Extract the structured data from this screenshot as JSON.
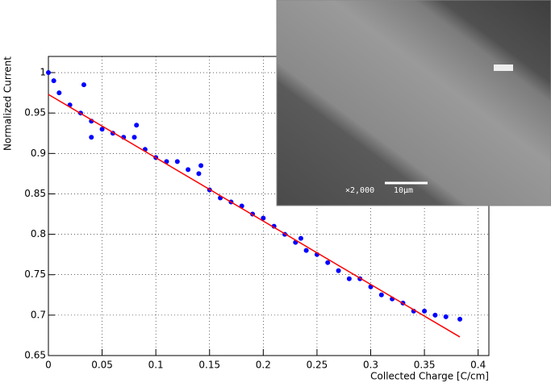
{
  "chart_data": {
    "type": "scatter",
    "x_label": "Collected Charge [C/cm]",
    "y_label": "Normalized Current",
    "xlim": [
      0,
      0.41
    ],
    "ylim": [
      0.65,
      1.02
    ],
    "xticks": [
      0,
      0.05,
      0.1,
      0.15,
      0.2,
      0.25,
      0.3,
      0.35,
      0.4
    ],
    "yticks": [
      0.65,
      0.7,
      0.75,
      0.8,
      0.85,
      0.9,
      0.95,
      1
    ],
    "grid": true,
    "annotations": [
      "×2,000",
      "10μm"
    ],
    "series": [
      {
        "type": "scatter",
        "color": "#0000ff",
        "x": [
          0,
          0.005,
          0.01,
          0.02,
          0.03,
          0.033,
          0.04,
          0.04,
          0.05,
          0.06,
          0.07,
          0.08,
          0.082,
          0.09,
          0.1,
          0.11,
          0.12,
          0.13,
          0.14,
          0.142,
          0.15,
          0.16,
          0.17,
          0.18,
          0.19,
          0.2,
          0.21,
          0.22,
          0.23,
          0.235,
          0.24,
          0.25,
          0.26,
          0.27,
          0.28,
          0.29,
          0.3,
          0.31,
          0.32,
          0.33,
          0.34,
          0.35,
          0.36,
          0.37,
          0.383
        ],
        "values": [
          1.0,
          0.99,
          0.975,
          0.96,
          0.95,
          0.985,
          0.92,
          0.94,
          0.93,
          0.925,
          0.92,
          0.92,
          0.935,
          0.905,
          0.895,
          0.89,
          0.89,
          0.88,
          0.875,
          0.885,
          0.855,
          0.845,
          0.84,
          0.835,
          0.825,
          0.82,
          0.81,
          0.8,
          0.79,
          0.795,
          0.78,
          0.775,
          0.765,
          0.755,
          0.745,
          0.745,
          0.735,
          0.725,
          0.72,
          0.715,
          0.705,
          0.705,
          0.7,
          0.698,
          0.695
        ]
      },
      {
        "type": "line",
        "color": "#ff0000",
        "x": [
          0,
          0.383
        ],
        "values": [
          0.973,
          0.673
        ]
      }
    ]
  }
}
